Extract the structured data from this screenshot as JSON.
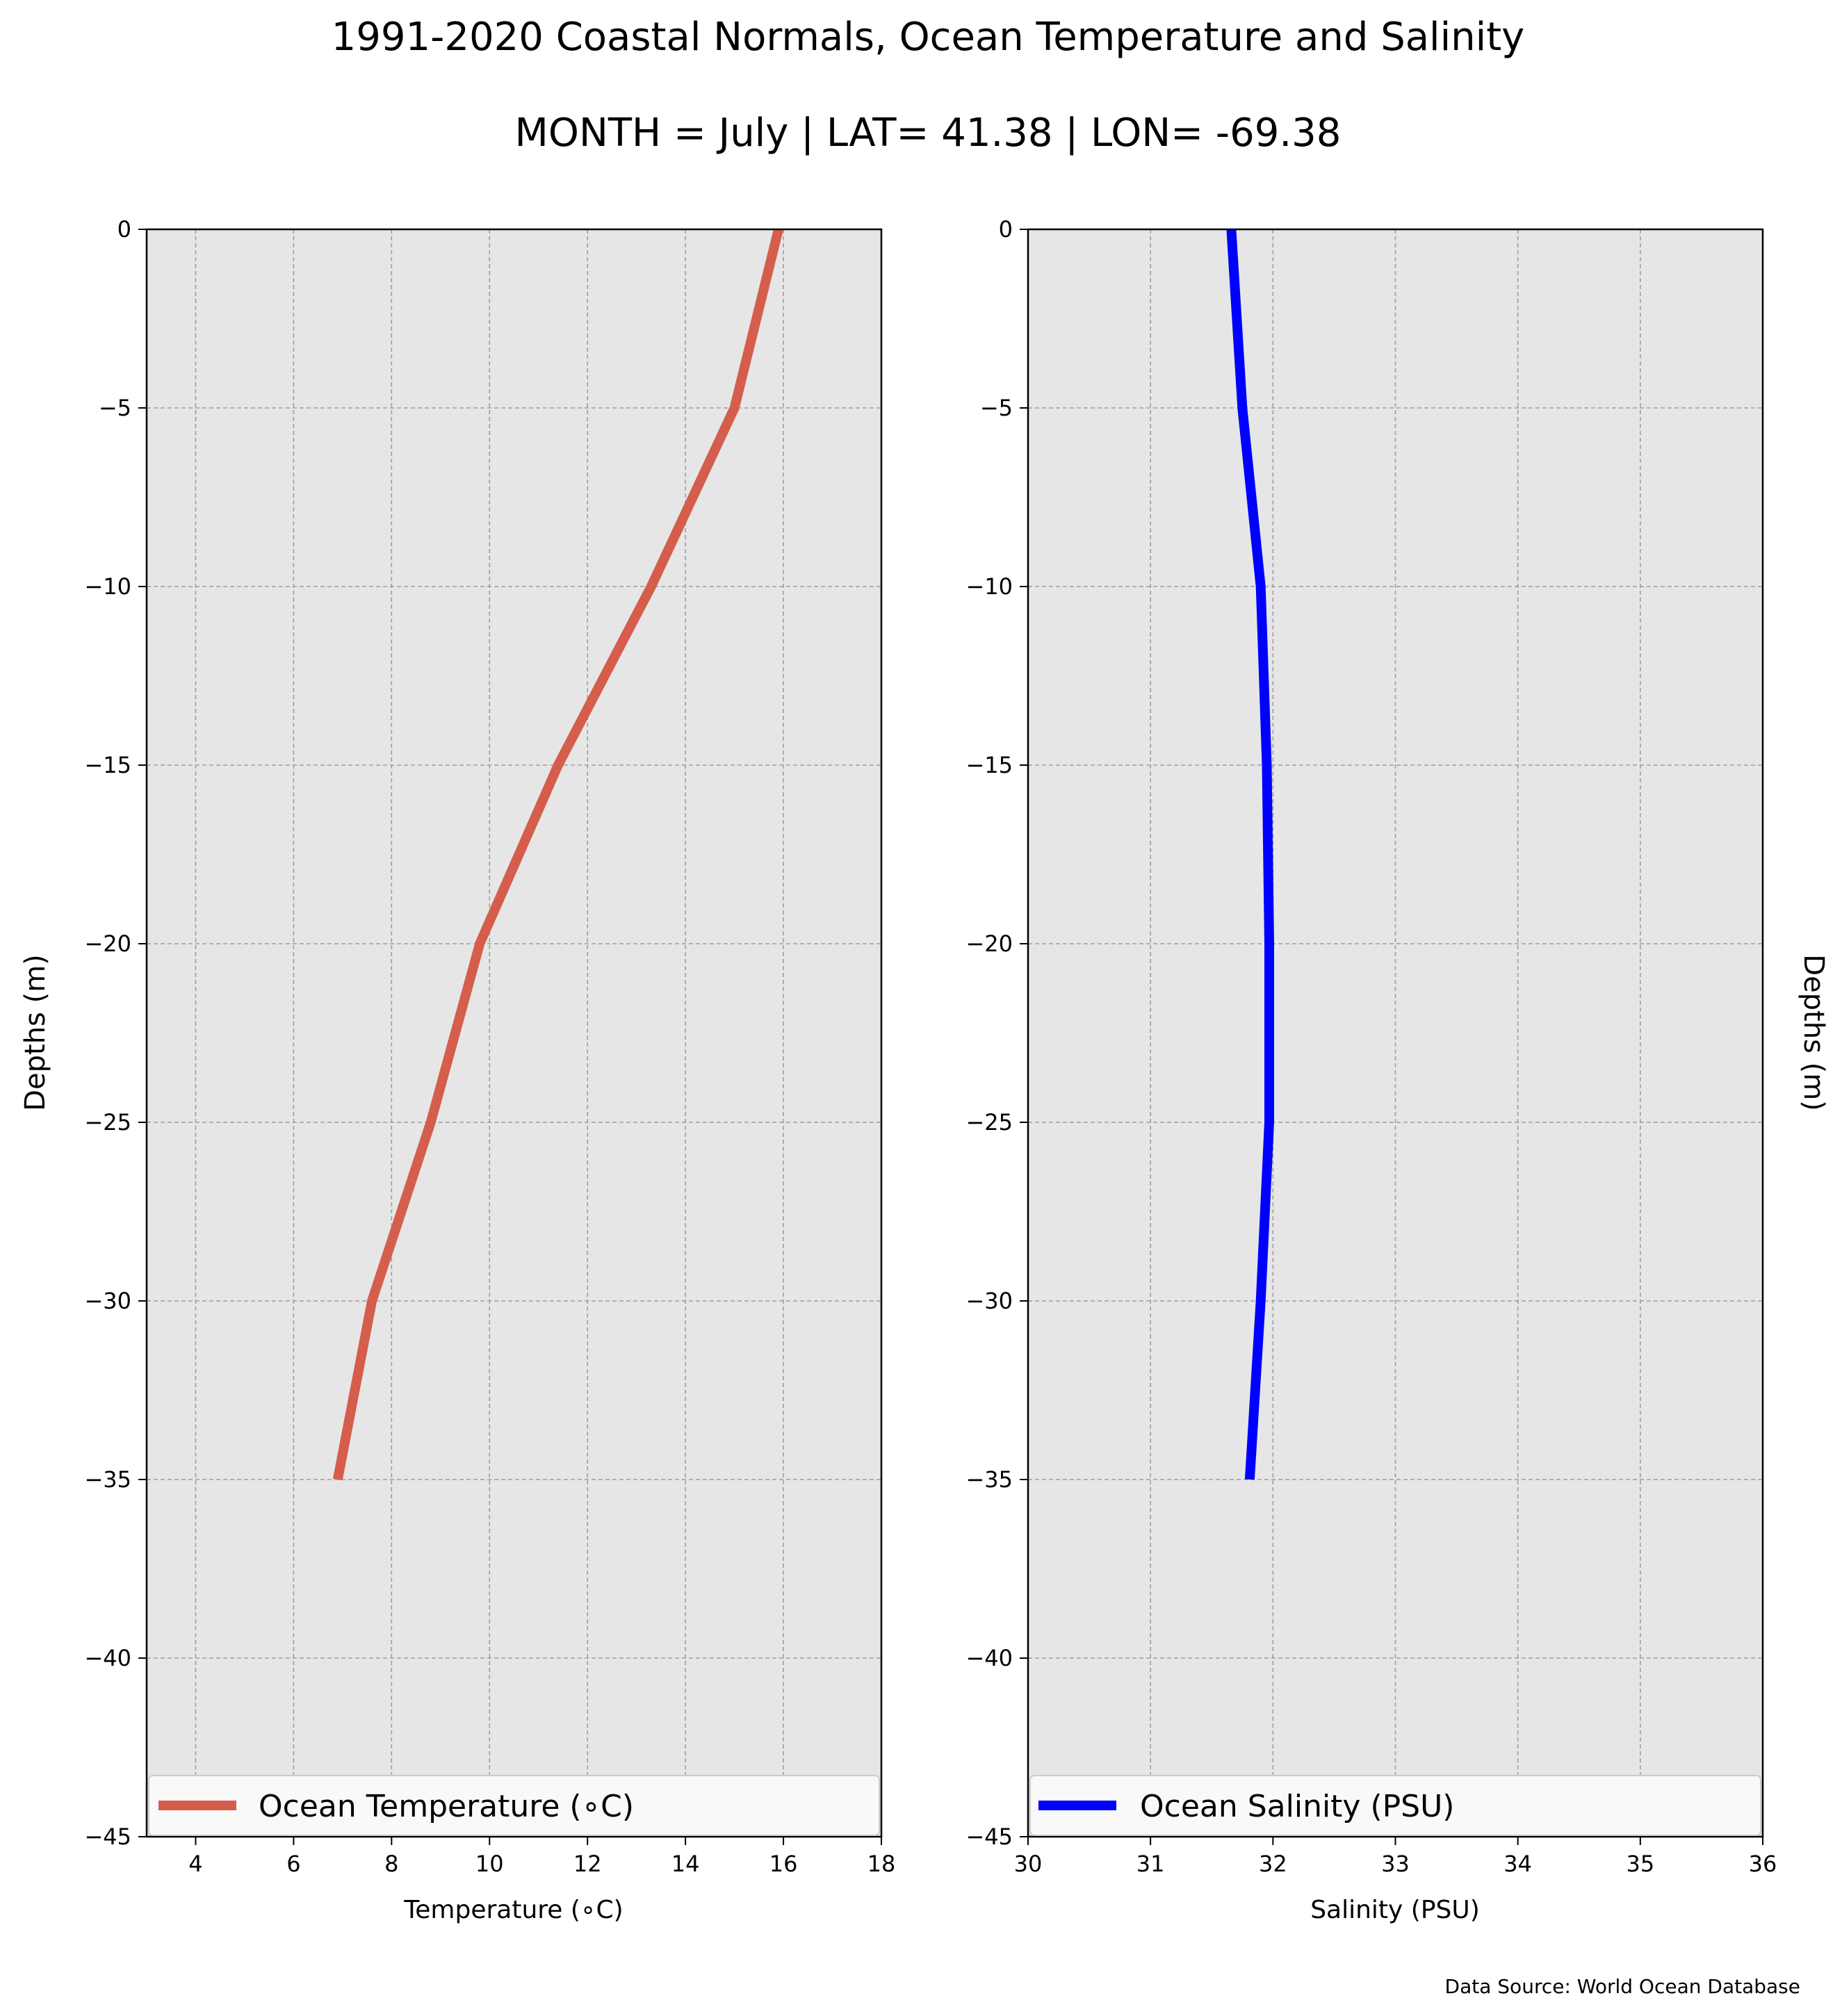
{
  "figure": {
    "title": "1991-2020 Coastal Normals, Ocean Temperature and Salinity",
    "subtitle": "MONTH = July | LAT= 41.38 | LON= -69.38",
    "source": "Data Source: World Ocean Database"
  },
  "chart_data": [
    {
      "type": "line",
      "xlabel": "Temperature (∘C)",
      "ylabel": "Depths (m)",
      "xlim": [
        3,
        18
      ],
      "ylim": [
        -45,
        0
      ],
      "xticks": [
        4,
        6,
        8,
        10,
        12,
        14,
        16,
        18
      ],
      "yticks": [
        0,
        -5,
        -10,
        -15,
        -20,
        -25,
        -30,
        -35,
        -40,
        -45
      ],
      "grid": true,
      "legend": "bottom",
      "series": [
        {
          "name": "Ocean Temperature (∘C)",
          "color": "#d55d4c",
          "x": [
            15.9,
            15.0,
            13.3,
            11.4,
            9.8,
            8.8,
            7.6,
            6.9
          ],
          "y": [
            0,
            -5,
            -10,
            -15,
            -20,
            -25,
            -30,
            -35
          ]
        }
      ]
    },
    {
      "type": "line",
      "xlabel": "Salinity (PSU)",
      "ylabel": "Depths (m)",
      "xlim": [
        30,
        36
      ],
      "ylim": [
        -45,
        0
      ],
      "xticks": [
        30,
        31,
        32,
        33,
        34,
        35,
        36
      ],
      "yticks": [
        0,
        -5,
        -10,
        -15,
        -20,
        -25,
        -30,
        -35,
        -40,
        -45
      ],
      "grid": true,
      "legend": "bottom",
      "series": [
        {
          "name": "Ocean Salinity (PSU)",
          "color": "#0000ff",
          "x": [
            31.66,
            31.75,
            31.9,
            31.95,
            31.97,
            31.97,
            31.9,
            31.81
          ],
          "y": [
            0,
            -5,
            -10,
            -15,
            -20,
            -25,
            -30,
            -35
          ]
        }
      ]
    }
  ]
}
